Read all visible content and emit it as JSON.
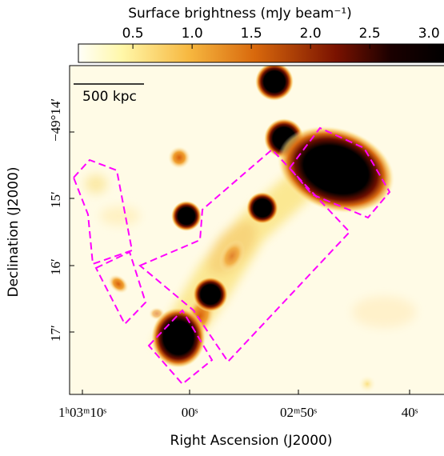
{
  "colorbar": {
    "label": "Surface brightness (mJy beam⁻¹)",
    "lim": [
      0.04,
      3.12
    ],
    "ticks": [
      0.5,
      {
        "value": 1,
        "label": "1.0"
      },
      1.5,
      {
        "value": 2,
        "label": "2.0"
      },
      2.5,
      {
        "value": 3,
        "label": "3.0"
      }
    ]
  },
  "axes": {
    "xlabel": "Right Ascension (J2000)",
    "ylabel": "Declination (J2000)",
    "xticks": [
      "1ʰ03ᵐ10ˢ",
      "00ˢ",
      "02ᵐ50ˢ",
      "40ˢ"
    ],
    "yticks": [
      "−49°14′",
      "15′",
      "16′",
      "17′"
    ]
  },
  "scale_bar": "500 kpc"
}
